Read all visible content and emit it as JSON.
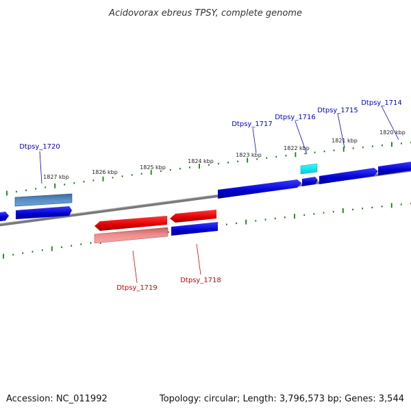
{
  "title": "Acidovorax ebreus TPSY, complete genome",
  "footer": {
    "accession": "Accession: NC_011992",
    "summary": "Topology: circular; Length: 3,796,573 bp; Genes: 3,544"
  },
  "kbp_labels": [
    "1827 kbp",
    "1826 kbp",
    "1825 kbp",
    "1824 kbp",
    "1823 kbp",
    "1822 kbp",
    "1821 kbp",
    "1820 kbp"
  ],
  "genes": [
    {
      "name": "Dtpsy_1720",
      "strand": "plus"
    },
    {
      "name": "Dtpsy_1719",
      "strand": "minus"
    },
    {
      "name": "Dtpsy_1718",
      "strand": "minus"
    },
    {
      "name": "Dtpsy_1717",
      "strand": "plus"
    },
    {
      "name": "Dtpsy_1716",
      "strand": "plus"
    },
    {
      "name": "Dtpsy_1715",
      "strand": "plus"
    },
    {
      "name": "Dtpsy_1714",
      "strand": "plus"
    }
  ],
  "colors": {
    "plus_strand": "#0000cc",
    "minus_strand": "#dd0000",
    "label_plus": "#0000cc",
    "label_minus": "#cc0000",
    "backbone": "#777777",
    "tick": "#1a7a1a",
    "rna_highlight": "#00e5e5",
    "selected_plus": "#4f86c6",
    "selected_minus": "#f08f8f"
  }
}
